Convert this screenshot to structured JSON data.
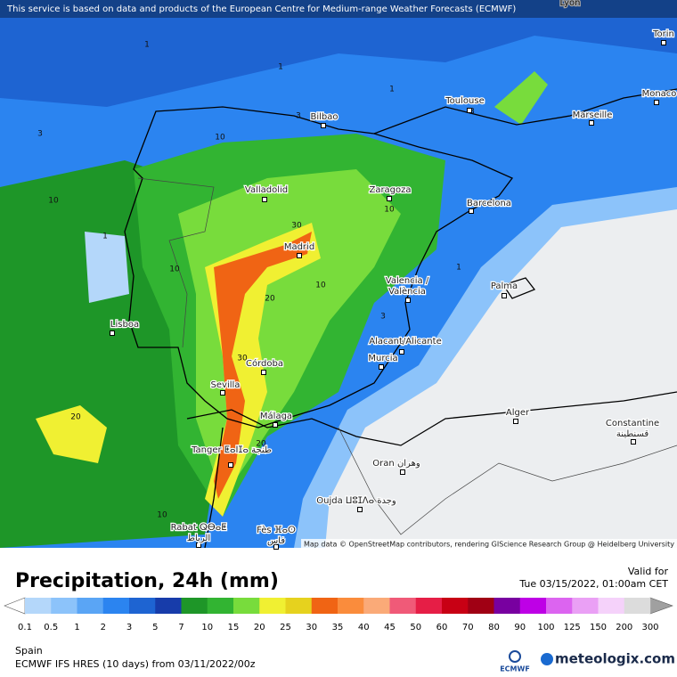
{
  "top_notice": "This service is based on data and products of the European Centre for Medium-range Weather Forecasts (ECMWF)",
  "map_attribution": "Map data © OpenStreetMap contributors, rendering GIScience Research Group @ Heidelberg University",
  "cities": [
    [
      "Lyon"
    ],
    [
      "Torin"
    ],
    [
      "Monaco"
    ],
    [
      "Toulouse"
    ],
    [
      "Marseille"
    ],
    [
      "Bilbao"
    ],
    [
      "Valladolid"
    ],
    [
      "Zaragoza"
    ],
    [
      "Barcelona"
    ],
    [
      "Madrid"
    ],
    [
      "Valencia /",
      "València"
    ],
    [
      "Palma"
    ],
    [
      "Lisboa"
    ],
    [
      "Alacant/Alicante"
    ],
    [
      "Murcia"
    ],
    [
      "Córdoba"
    ],
    [
      "Sevilla"
    ],
    [
      "Málaga"
    ],
    [
      "Alger"
    ],
    [
      "Constantine",
      "قسنطينة"
    ],
    [
      "Tanger ⵟⴰⵏⵊⴰ طنجة"
    ],
    [
      "Oran وهران"
    ],
    [
      "Oujda ⵡⵓⵊⴷⴰ وجدة"
    ],
    [
      "Rabat ⵕⴱⴰⵟ",
      "الرباط"
    ],
    [
      "Fès ⴼⴰⵙ",
      "فاس"
    ]
  ],
  "contour_labels": [
    1,
    1,
    1,
    3,
    3,
    3,
    1,
    10,
    10,
    10,
    20,
    20,
    30,
    30,
    10,
    10,
    1,
    3,
    10,
    20
  ],
  "title": "Precipitation, 24h (mm)",
  "valid_label": "Valid for",
  "valid_time": "Tue 03/15/2022, 01:00am CET",
  "legend": {
    "values": [
      0.1,
      0.5,
      1,
      2,
      3,
      5,
      7,
      10,
      15,
      20,
      25,
      30,
      35,
      40,
      45,
      50,
      60,
      70,
      80,
      90,
      100,
      125,
      150,
      200,
      300
    ],
    "colors": [
      "#b4d7fa",
      "#8cc3fa",
      "#5aa5f5",
      "#2b84f0",
      "#1e64d2",
      "#173caa",
      "#1e9628",
      "#32b432",
      "#78dc3c",
      "#f0f032",
      "#e6d21e",
      "#f06414",
      "#fa8c3c",
      "#faaa78",
      "#f05a78",
      "#e61e46",
      "#c80014",
      "#a00014",
      "#7800a0",
      "#be00e6",
      "#dc64f0",
      "#eaa0f5",
      "#f5d2fa",
      "#dcdcdc"
    ],
    "under_color": "#ffffff",
    "over_color": "#a0a0a0"
  },
  "region": "Spain",
  "model_run": "ECMWF IFS HRES (10 days) from 03/11/2022/00z",
  "logos": [
    "ECMWF",
    "meteologix.com"
  ]
}
